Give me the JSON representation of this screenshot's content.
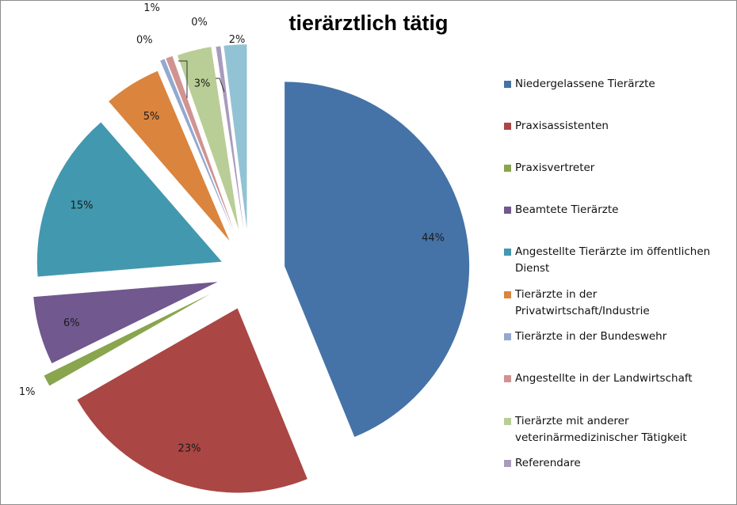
{
  "chart_data": {
    "type": "pie",
    "title": "tierärztlich tätig",
    "exploded": true,
    "categories": [
      "Niedergelassene Tierärzte",
      "Praxisassistenten",
      "Praxisvertreter",
      "Beamtete Tierärzte",
      "Angestellte Tierärzte im öffentlichen Dienst",
      "Tierärzte in der Privatwirtschaft/Industrie",
      "Tierärzte in der Bundeswehr",
      "Angestellte in der Landwirtschaft",
      "Tierärzte mit anderer veterinärmedizinischer Tätigkeit",
      "Referendare",
      ""
    ],
    "values": [
      44,
      23,
      1,
      6,
      15,
      5,
      0.4,
      0.6,
      3,
      0.4,
      2
    ],
    "data_labels": [
      "44%",
      "23%",
      "1%",
      "6%",
      "15%",
      "5%",
      "0%",
      "1%",
      "3%",
      "0%",
      "2%"
    ],
    "colors": [
      "#4573a7",
      "#aa4644",
      "#89a54e",
      "#71588f",
      "#4298af",
      "#db843d",
      "#93a9cf",
      "#d19392",
      "#b9cd96",
      "#a99bbd",
      "#92c3d5"
    ],
    "legend_position": "right"
  },
  "legend": {
    "items": [
      {
        "label": "Niedergelassene Tierärzte",
        "color": "#4573a7"
      },
      {
        "label": "Praxisassistenten",
        "color": "#aa4644"
      },
      {
        "label": "Praxisvertreter",
        "color": "#89a54e"
      },
      {
        "label": "Beamtete Tierärzte",
        "color": "#71588f"
      },
      {
        "label": "Angestellte Tierärzte im öffentlichen Dienst",
        "color": "#4298af"
      },
      {
        "label": "Tierärzte in der Privatwirtschaft/Industrie",
        "color": "#db843d"
      },
      {
        "label": "Tierärzte in der Bundeswehr",
        "color": "#93a9cf"
      },
      {
        "label": "Angestellte in der Landwirtschaft",
        "color": "#d19392"
      },
      {
        "label": "Tierärzte mit anderer veterinärmedizinischer Tätigkeit",
        "color": "#b9cd96"
      },
      {
        "label": "Referendare",
        "color": "#a99bbd"
      }
    ]
  }
}
